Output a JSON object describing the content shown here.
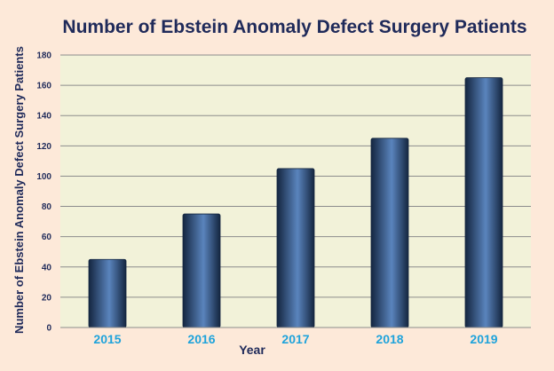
{
  "chart_data": {
    "type": "bar",
    "title": "Number of Ebstein Anomaly Defect Surgery Patients",
    "xlabel": "Year",
    "ylabel": "Number of Ebstein Anomaly Defect Surgery Patients",
    "categories": [
      "2015",
      "2016",
      "2017",
      "2018",
      "2019"
    ],
    "values": [
      45,
      75,
      105,
      125,
      165
    ],
    "ylim": [
      0,
      180
    ],
    "yticks": [
      "0",
      "20",
      "40",
      "60",
      "80",
      "100",
      "120",
      "140",
      "160",
      "180"
    ],
    "grid": true,
    "legend": "none"
  },
  "colors": {
    "page_background": "#fde9d9",
    "plot_background": "#f2f2d9",
    "bar_dark": "#142640",
    "bar_light": "#5a84bd",
    "title": "#1f2a5a",
    "tick_year": "#1fa3db",
    "gridline": "#8c8c8c"
  }
}
